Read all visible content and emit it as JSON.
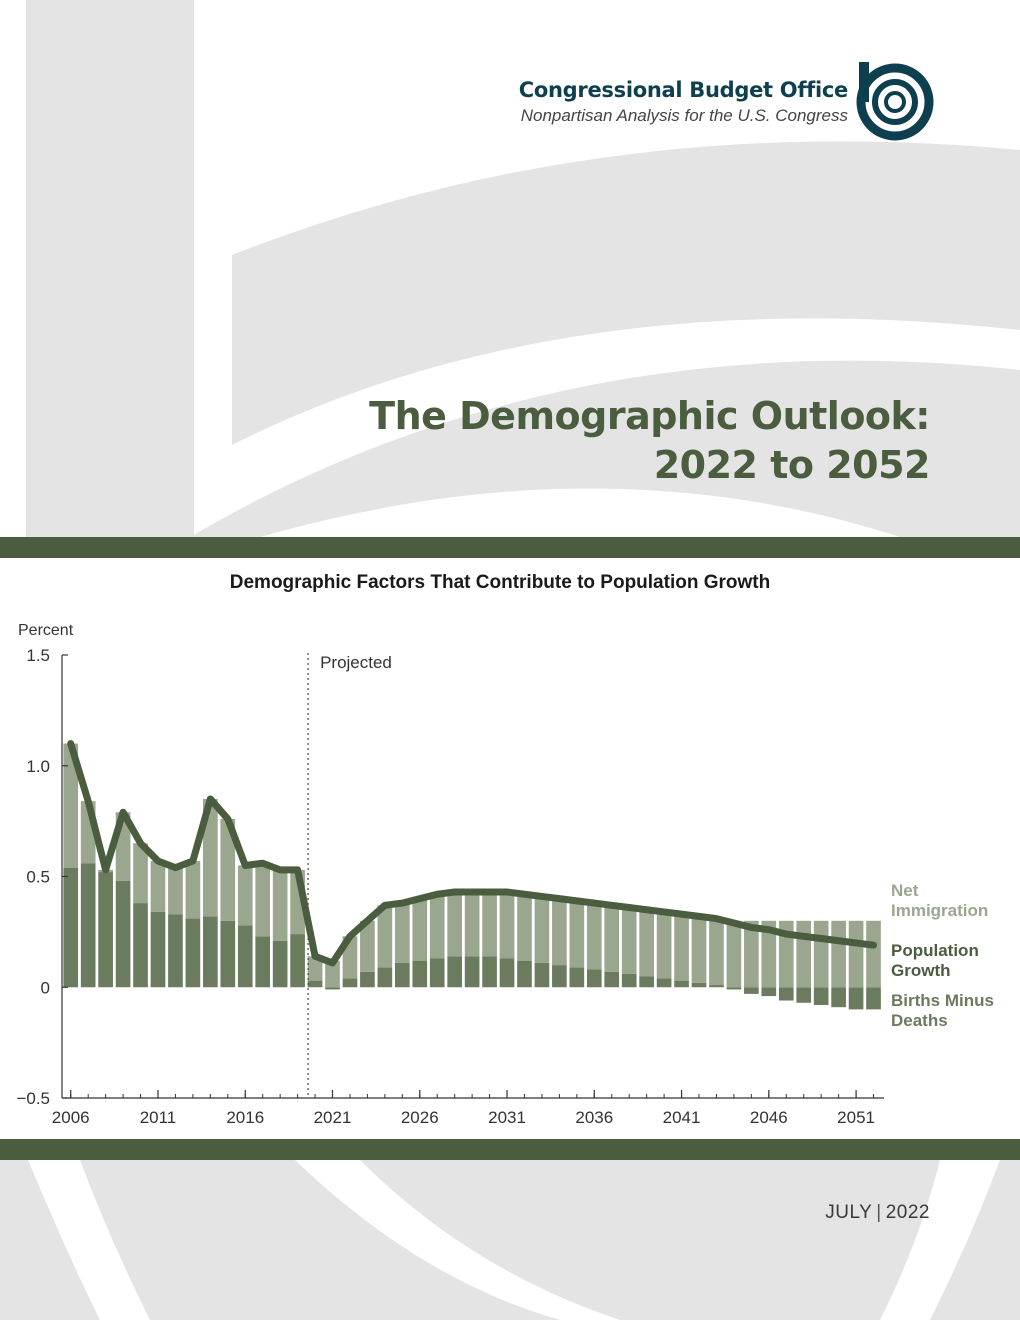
{
  "header": {
    "organization": "Congressional Budget Office",
    "tagline": "Nonpartisan Analysis for the U.S. Congress"
  },
  "report": {
    "title_line1": "The Demographic Outlook:",
    "title_line2": "2022 to 2052"
  },
  "footer": {
    "month": "JULY",
    "separator": "|",
    "year": "2022"
  },
  "colors": {
    "band": "#4a5d3f",
    "net_immigration": "#9aa68e",
    "births_minus_deaths": "#6b7c5e",
    "population_growth": "#4a5d3f",
    "brand": "#0e3f4f"
  },
  "chart_data": {
    "type": "bar",
    "title": "Demographic Factors That Contribute to Population Growth",
    "ylabel": "Percent",
    "ylim": [
      -0.5,
      1.5
    ],
    "yticks": [
      "1.5",
      "1.0",
      "0.5",
      "0",
      "−0.5"
    ],
    "yticks_values": [
      1.5,
      1.0,
      0.5,
      0,
      -0.5
    ],
    "xlim": [
      2006,
      2052
    ],
    "xticks": [
      2006,
      2011,
      2016,
      2021,
      2026,
      2031,
      2036,
      2041,
      2046,
      2051
    ],
    "projected_label": "Projected",
    "projected_start": 2020,
    "x": [
      2006,
      2007,
      2008,
      2009,
      2010,
      2011,
      2012,
      2013,
      2014,
      2015,
      2016,
      2017,
      2018,
      2019,
      2020,
      2021,
      2022,
      2023,
      2024,
      2025,
      2026,
      2027,
      2028,
      2029,
      2030,
      2031,
      2032,
      2033,
      2034,
      2035,
      2036,
      2037,
      2038,
      2039,
      2040,
      2041,
      2042,
      2043,
      2044,
      2045,
      2046,
      2047,
      2048,
      2049,
      2050,
      2051,
      2052
    ],
    "series": [
      {
        "name": "Births Minus Deaths",
        "values": [
          0.54,
          0.56,
          0.52,
          0.48,
          0.38,
          0.34,
          0.33,
          0.31,
          0.32,
          0.3,
          0.28,
          0.23,
          0.21,
          0.24,
          0.03,
          -0.01,
          0.04,
          0.07,
          0.09,
          0.11,
          0.12,
          0.13,
          0.14,
          0.14,
          0.14,
          0.13,
          0.12,
          0.11,
          0.1,
          0.09,
          0.08,
          0.07,
          0.06,
          0.05,
          0.04,
          0.03,
          0.02,
          0.01,
          -0.01,
          -0.03,
          -0.04,
          -0.06,
          -0.07,
          -0.08,
          -0.09,
          -0.1,
          -0.1
        ]
      },
      {
        "name": "Net Immigration",
        "values": [
          0.56,
          0.28,
          0.01,
          0.31,
          0.27,
          0.23,
          0.21,
          0.26,
          0.53,
          0.46,
          0.27,
          0.33,
          0.32,
          0.29,
          0.11,
          0.12,
          0.19,
          0.23,
          0.28,
          0.27,
          0.28,
          0.29,
          0.29,
          0.29,
          0.29,
          0.3,
          0.3,
          0.3,
          0.3,
          0.3,
          0.3,
          0.3,
          0.3,
          0.3,
          0.3,
          0.3,
          0.3,
          0.3,
          0.3,
          0.3,
          0.3,
          0.3,
          0.3,
          0.3,
          0.3,
          0.3,
          0.3
        ]
      },
      {
        "name": "Population Growth",
        "values": [
          1.1,
          0.84,
          0.53,
          0.79,
          0.65,
          0.57,
          0.54,
          0.57,
          0.85,
          0.76,
          0.55,
          0.56,
          0.53,
          0.53,
          0.14,
          0.11,
          0.23,
          0.3,
          0.37,
          0.38,
          0.4,
          0.42,
          0.43,
          0.43,
          0.43,
          0.43,
          0.42,
          0.41,
          0.4,
          0.39,
          0.38,
          0.37,
          0.36,
          0.35,
          0.34,
          0.33,
          0.32,
          0.31,
          0.29,
          0.27,
          0.26,
          0.24,
          0.23,
          0.22,
          0.21,
          0.2,
          0.19
        ]
      }
    ],
    "legend": [
      "Net Immigration",
      "Population Growth",
      "Births Minus Deaths"
    ],
    "legend_placement": "right",
    "grid": false
  }
}
